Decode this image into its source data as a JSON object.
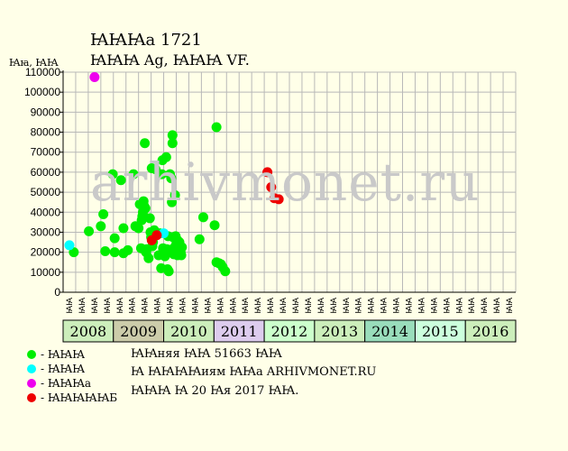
{
  "header": {
    "title": "ꙖꙖꙖа 1721",
    "subtitle": "ꙖꙖꙖ Ag, ꙖꙖꙖ VF.",
    "y_unit": "Ꙗꙗ, ꙖꙖ"
  },
  "watermark": "arhivmonet.ru",
  "legend": [
    {
      "label": "- ꙖꙖꙖ",
      "color": "#00ee00"
    },
    {
      "label": "- ꙖꙖꙖ",
      "color": "#00ffff"
    },
    {
      "label": "- ꙖꙖꙖа",
      "color": "#ee00ee"
    },
    {
      "label": "- ꙖꙖꙖꙖꙖБ",
      "color": "#ee0000"
    }
  ],
  "info": {
    "line1": "ꙖꙖняя ꙖꙖ 51663 ꙖꙖ",
    "line2": "Ꙗ ꙖꙖꙖꙖиям ꙖꙖа ARHIVMONET.RU",
    "line3": "ꙖꙖꙖ Ꙗ 20 Ꙗя 2017 ꙖꙖ."
  },
  "chart_data": {
    "type": "scatter",
    "ylim": [
      0,
      110000
    ],
    "yticks": [
      0,
      10000,
      20000,
      30000,
      40000,
      50000,
      60000,
      70000,
      80000,
      90000,
      100000,
      110000
    ],
    "grid": true,
    "years": [
      {
        "label": "2008",
        "color": "#cceebb",
        "periods": [
          "ꙖꙖ",
          "ꙖꙖ",
          "ꙖꙖ",
          "ꙖꙖ"
        ]
      },
      {
        "label": "2009",
        "color": "#ccccaa",
        "periods": [
          "ꙖꙖ",
          "ꙖꙖ",
          "ꙖꙖ",
          "ꙖꙖ"
        ]
      },
      {
        "label": "2010",
        "color": "#cceebb",
        "periods": [
          "ꙖꙖ",
          "ꙖꙖ",
          "ꙖꙖ",
          "ꙖꙖ"
        ]
      },
      {
        "label": "2011",
        "color": "#ddccee",
        "periods": [
          "ꙖꙖ",
          "ꙖꙖ",
          "ꙖꙖ",
          "ꙖꙖ"
        ]
      },
      {
        "label": "2012",
        "color": "#ccffcc",
        "periods": [
          "ꙖꙖ",
          "ꙖꙖ",
          "ꙖꙖ",
          "ꙖꙖ"
        ]
      },
      {
        "label": "2013",
        "color": "#cceebb",
        "periods": [
          "ꙖꙖ",
          "ꙖꙖ",
          "ꙖꙖ",
          "ꙖꙖ"
        ]
      },
      {
        "label": "2014",
        "color": "#99ddbb",
        "periods": [
          "ꙖꙖ",
          "ꙖꙖ",
          "ꙖꙖ",
          "ꙖꙖ"
        ]
      },
      {
        "label": "2015",
        "color": "#ccffdd",
        "periods": [
          "ꙖꙖ",
          "ꙖꙖ",
          "ꙖꙖ",
          "ꙖꙖ"
        ]
      },
      {
        "label": "2016",
        "color": "#cceebb",
        "periods": [
          "ꙖꙖ",
          "ꙖꙖ",
          "ꙖꙖ",
          "ꙖꙖ"
        ]
      }
    ],
    "series": [
      {
        "name": "- ꙖꙖꙖ",
        "color": "#00ee00",
        "points": [
          [
            0.35,
            20000
          ],
          [
            1.55,
            30500
          ],
          [
            2.5,
            33000
          ],
          [
            2.7,
            39000
          ],
          [
            2.85,
            20500
          ],
          [
            3.45,
            59000
          ],
          [
            3.6,
            27000
          ],
          [
            3.6,
            20000
          ],
          [
            4.1,
            56000
          ],
          [
            4.3,
            32000
          ],
          [
            4.3,
            19500
          ],
          [
            4.65,
            21000
          ],
          [
            5.1,
            59000
          ],
          [
            5.25,
            33000
          ],
          [
            5.5,
            32000
          ],
          [
            5.6,
            44000
          ],
          [
            5.7,
            22000
          ],
          [
            5.75,
            36000
          ],
          [
            5.8,
            38000
          ],
          [
            5.85,
            40000
          ],
          [
            5.9,
            45500
          ],
          [
            5.95,
            43000
          ],
          [
            6.0,
            74500
          ],
          [
            6.0,
            21000
          ],
          [
            6.05,
            42000
          ],
          [
            6.1,
            20000
          ],
          [
            6.15,
            21500
          ],
          [
            6.3,
            17000
          ],
          [
            6.4,
            37000
          ],
          [
            6.45,
            30000
          ],
          [
            6.5,
            27500
          ],
          [
            6.55,
            62000
          ],
          [
            6.6,
            23000
          ],
          [
            6.65,
            25000
          ],
          [
            6.75,
            31000
          ],
          [
            6.85,
            61500
          ],
          [
            7.1,
            18500
          ],
          [
            7.2,
            29500
          ],
          [
            7.3,
            12000
          ],
          [
            7.35,
            59000
          ],
          [
            7.4,
            66000
          ],
          [
            7.45,
            22000
          ],
          [
            7.55,
            20000
          ],
          [
            7.6,
            18000
          ],
          [
            7.7,
            67500
          ],
          [
            7.75,
            21500
          ],
          [
            7.8,
            11500
          ],
          [
            7.85,
            28000
          ],
          [
            7.9,
            10500
          ],
          [
            8.0,
            59000
          ],
          [
            8.05,
            20000
          ],
          [
            8.1,
            57000
          ],
          [
            8.15,
            45000
          ],
          [
            8.2,
            78500
          ],
          [
            8.2,
            74500
          ],
          [
            8.25,
            27500
          ],
          [
            8.3,
            22000
          ],
          [
            8.4,
            48500
          ],
          [
            8.45,
            28000
          ],
          [
            8.5,
            24000
          ],
          [
            8.55,
            19500
          ],
          [
            8.6,
            26000
          ],
          [
            8.7,
            23000
          ],
          [
            8.75,
            25000
          ],
          [
            8.85,
            20000
          ],
          [
            8.9,
            18500
          ],
          [
            8.95,
            22500
          ],
          [
            8.3,
            19000
          ],
          [
            8.6,
            18500
          ],
          [
            10.35,
            26500
          ],
          [
            10.65,
            37500
          ],
          [
            11.55,
            33500
          ],
          [
            11.7,
            82500
          ],
          [
            11.7,
            15000
          ],
          [
            11.9,
            14500
          ],
          [
            12.05,
            14000
          ],
          [
            12.2,
            12500
          ],
          [
            12.4,
            10500
          ]
        ]
      },
      {
        "name": "- ꙖꙖꙖ",
        "color": "#00ffff",
        "points": [
          [
            0.0,
            23500
          ],
          [
            7.5,
            29500
          ]
        ]
      },
      {
        "name": "- ꙖꙖꙖа",
        "color": "#ee00ee",
        "points": [
          [
            2.0,
            107500
          ]
        ]
      },
      {
        "name": "- ꙖꙖꙖꙖꙖБ",
        "color": "#ee0000",
        "points": [
          [
            6.55,
            26000
          ],
          [
            6.95,
            28500
          ],
          [
            15.75,
            60000
          ],
          [
            16.05,
            52500
          ],
          [
            16.3,
            47000
          ],
          [
            16.65,
            46500
          ]
        ]
      }
    ]
  }
}
